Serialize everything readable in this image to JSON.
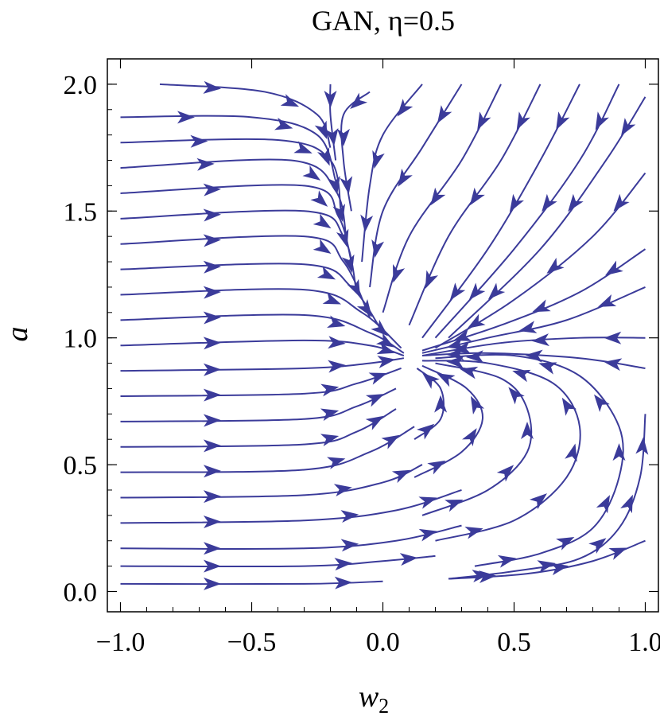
{
  "chart_data": {
    "type": "streamplot",
    "title": "GAN, η=0.5",
    "xlabel": "w",
    "xlabel_sub": "2",
    "ylabel": "a",
    "xlim": [
      -1.05,
      1.05
    ],
    "ylim": [
      -0.08,
      2.1
    ],
    "x_ticks": [
      -1.0,
      -0.5,
      0.0,
      0.5,
      1.0
    ],
    "x_tick_labels": [
      "−1.0",
      "−0.5",
      "0.0",
      "0.5",
      "1.0"
    ],
    "y_ticks": [
      0.0,
      0.5,
      1.0,
      1.5,
      2.0
    ],
    "y_tick_labels": [
      "0.0",
      "0.5",
      "1.0",
      "1.5",
      "2.0"
    ],
    "fixed_point": [
      0.1,
      0.92
    ],
    "grid": false,
    "stream_color": "#3b3b9a",
    "streamlines": [
      [
        [
          -1.0,
          0.03
        ],
        [
          -0.3,
          0.03
        ],
        [
          0.0,
          0.04
        ]
      ],
      [
        [
          -1.0,
          0.1
        ],
        [
          -0.3,
          0.1
        ],
        [
          0.0,
          0.12
        ],
        [
          0.2,
          0.14
        ]
      ],
      [
        [
          -1.0,
          0.17
        ],
        [
          -0.3,
          0.17
        ],
        [
          0.05,
          0.2
        ],
        [
          0.3,
          0.26
        ]
      ],
      [
        [
          -1.0,
          0.27
        ],
        [
          -0.3,
          0.28
        ],
        [
          0.05,
          0.32
        ],
        [
          0.3,
          0.4
        ]
      ],
      [
        [
          -1.0,
          0.37
        ],
        [
          -0.3,
          0.38
        ],
        [
          0.0,
          0.43
        ],
        [
          0.15,
          0.5
        ]
      ],
      [
        [
          -1.0,
          0.47
        ],
        [
          -0.3,
          0.48
        ],
        [
          -0.05,
          0.55
        ],
        [
          0.12,
          0.65
        ]
      ],
      [
        [
          -1.0,
          0.57
        ],
        [
          -0.3,
          0.58
        ],
        [
          -0.1,
          0.63
        ],
        [
          0.05,
          0.72
        ]
      ],
      [
        [
          -1.0,
          0.67
        ],
        [
          -0.3,
          0.68
        ],
        [
          -0.1,
          0.73
        ],
        [
          0.05,
          0.8
        ]
      ],
      [
        [
          -1.0,
          0.77
        ],
        [
          -0.3,
          0.78
        ],
        [
          -0.1,
          0.82
        ],
        [
          0.07,
          0.88
        ]
      ],
      [
        [
          -1.0,
          0.87
        ],
        [
          -0.3,
          0.88
        ],
        [
          -0.05,
          0.9
        ],
        [
          0.08,
          0.92
        ]
      ],
      [
        [
          -1.0,
          0.97
        ],
        [
          -0.3,
          0.99
        ],
        [
          -0.05,
          0.97
        ],
        [
          0.08,
          0.93
        ]
      ],
      [
        [
          -1.0,
          1.07
        ],
        [
          -0.3,
          1.09
        ],
        [
          -0.05,
          1.02
        ],
        [
          0.08,
          0.94
        ]
      ],
      [
        [
          -1.0,
          1.17
        ],
        [
          -0.3,
          1.19
        ],
        [
          -0.08,
          1.1
        ],
        [
          0.07,
          0.96
        ]
      ],
      [
        [
          -1.0,
          1.27
        ],
        [
          -0.3,
          1.29
        ],
        [
          -0.12,
          1.2
        ],
        [
          0.0,
          1.02
        ]
      ],
      [
        [
          -1.0,
          1.37
        ],
        [
          -0.3,
          1.4
        ],
        [
          -0.15,
          1.3
        ],
        [
          -0.05,
          1.08
        ]
      ],
      [
        [
          -1.0,
          1.47
        ],
        [
          -0.3,
          1.5
        ],
        [
          -0.15,
          1.4
        ],
        [
          -0.1,
          1.18
        ]
      ],
      [
        [
          -1.0,
          1.57
        ],
        [
          -0.3,
          1.6
        ],
        [
          -0.17,
          1.48
        ],
        [
          -0.12,
          1.3
        ]
      ],
      [
        [
          -1.0,
          1.67
        ],
        [
          -0.35,
          1.7
        ],
        [
          -0.18,
          1.58
        ],
        [
          -0.14,
          1.4
        ]
      ],
      [
        [
          -1.0,
          1.77
        ],
        [
          -0.4,
          1.78
        ],
        [
          -0.2,
          1.7
        ],
        [
          -0.16,
          1.5
        ]
      ],
      [
        [
          -1.0,
          1.87
        ],
        [
          -0.5,
          1.87
        ],
        [
          -0.25,
          1.8
        ],
        [
          -0.18,
          1.62
        ]
      ],
      [
        [
          -0.85,
          2.0
        ],
        [
          -0.45,
          1.97
        ],
        [
          -0.25,
          1.88
        ],
        [
          -0.2,
          1.75
        ]
      ],
      [
        [
          -0.2,
          2.0
        ],
        [
          -0.2,
          1.88
        ],
        [
          -0.18,
          1.7
        ]
      ],
      [
        [
          -0.05,
          1.97
        ],
        [
          -0.15,
          1.88
        ],
        [
          -0.15,
          1.7
        ],
        [
          -0.12,
          1.5
        ]
      ],
      [
        [
          0.15,
          2.0
        ],
        [
          0.0,
          1.8
        ],
        [
          -0.05,
          1.6
        ],
        [
          -0.08,
          1.3
        ]
      ],
      [
        [
          0.3,
          2.0
        ],
        [
          0.15,
          1.75
        ],
        [
          0.0,
          1.5
        ],
        [
          -0.05,
          1.2
        ]
      ],
      [
        [
          0.45,
          2.0
        ],
        [
          0.3,
          1.7
        ],
        [
          0.1,
          1.4
        ],
        [
          0.0,
          1.1
        ]
      ],
      [
        [
          0.6,
          2.0
        ],
        [
          0.45,
          1.7
        ],
        [
          0.25,
          1.4
        ],
        [
          0.1,
          1.05
        ]
      ],
      [
        [
          0.75,
          2.0
        ],
        [
          0.6,
          1.7
        ],
        [
          0.4,
          1.35
        ],
        [
          0.15,
          1.0
        ]
      ],
      [
        [
          0.9,
          2.0
        ],
        [
          0.75,
          1.7
        ],
        [
          0.5,
          1.35
        ],
        [
          0.2,
          1.0
        ]
      ],
      [
        [
          1.0,
          1.95
        ],
        [
          0.85,
          1.7
        ],
        [
          0.6,
          1.35
        ],
        [
          0.25,
          1.0
        ]
      ],
      [
        [
          1.0,
          1.65
        ],
        [
          0.8,
          1.4
        ],
        [
          0.5,
          1.15
        ],
        [
          0.2,
          0.96
        ]
      ],
      [
        [
          1.0,
          1.35
        ],
        [
          0.75,
          1.18
        ],
        [
          0.45,
          1.05
        ],
        [
          0.15,
          0.95
        ]
      ],
      [
        [
          1.0,
          1.2
        ],
        [
          0.7,
          1.07
        ],
        [
          0.4,
          1.0
        ],
        [
          0.15,
          0.94
        ]
      ],
      [
        [
          1.0,
          1.0
        ],
        [
          0.75,
          1.0
        ],
        [
          0.45,
          0.98
        ],
        [
          0.15,
          0.93
        ]
      ],
      [
        [
          1.0,
          0.88
        ],
        [
          0.75,
          0.92
        ],
        [
          0.4,
          0.94
        ],
        [
          0.15,
          0.93
        ]
      ],
      [
        [
          0.25,
          0.05
        ],
        [
          0.55,
          0.07
        ],
        [
          0.8,
          0.12
        ],
        [
          1.0,
          0.2
        ]
      ],
      [
        [
          0.35,
          0.1
        ],
        [
          0.6,
          0.15
        ],
        [
          0.8,
          0.25
        ],
        [
          0.9,
          0.45
        ],
        [
          0.9,
          0.65
        ],
        [
          0.75,
          0.85
        ],
        [
          0.5,
          0.93
        ],
        [
          0.2,
          0.92
        ]
      ],
      [
        [
          0.2,
          0.2
        ],
        [
          0.5,
          0.28
        ],
        [
          0.7,
          0.45
        ],
        [
          0.75,
          0.65
        ],
        [
          0.65,
          0.82
        ],
        [
          0.4,
          0.9
        ],
        [
          0.15,
          0.91
        ]
      ],
      [
        [
          0.15,
          0.3
        ],
        [
          0.4,
          0.4
        ],
        [
          0.55,
          0.55
        ],
        [
          0.55,
          0.72
        ],
        [
          0.45,
          0.84
        ],
        [
          0.2,
          0.9
        ]
      ],
      [
        [
          0.12,
          0.45
        ],
        [
          0.3,
          0.55
        ],
        [
          0.38,
          0.68
        ],
        [
          0.32,
          0.8
        ],
        [
          0.15,
          0.89
        ]
      ],
      [
        [
          0.12,
          0.6
        ],
        [
          0.22,
          0.68
        ],
        [
          0.22,
          0.8
        ],
        [
          0.13,
          0.88
        ]
      ],
      [
        [
          0.25,
          0.05
        ],
        [
          0.5,
          0.08
        ],
        [
          0.75,
          0.13
        ],
        [
          0.9,
          0.25
        ],
        [
          0.98,
          0.45
        ],
        [
          1.0,
          0.7
        ]
      ]
    ]
  }
}
